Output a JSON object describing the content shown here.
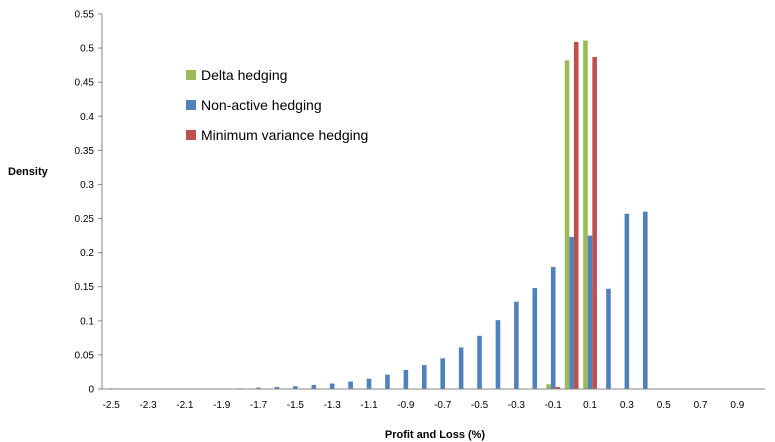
{
  "chart_data": {
    "type": "bar",
    "xlabel": "Profit and Loss (%)",
    "ylabel": "Density",
    "ylim": [
      0,
      0.55
    ],
    "yticks": [
      "0",
      "0.05",
      "0.1",
      "0.15",
      "0.2",
      "0.25",
      "0.3",
      "0.35",
      "0.4",
      "0.45",
      "0.5",
      "0.55"
    ],
    "xtick_labels": [
      "-2.5",
      "-2.3",
      "-2.1",
      "-1.9",
      "-1.7",
      "-1.5",
      "-1.3",
      "-1.1",
      "-0.9",
      "-0.7",
      "-0.5",
      "-0.3",
      "-0.1",
      "0.1",
      "0.3",
      "0.5",
      "0.7",
      "0.9"
    ],
    "legend_position": "top-left",
    "categories": [
      -2.5,
      -2.4,
      -2.3,
      -2.2,
      -2.1,
      -2.0,
      -1.9,
      -1.8,
      -1.7,
      -1.6,
      -1.5,
      -1.4,
      -1.3,
      -1.2,
      -1.1,
      -1.0,
      -0.9,
      -0.8,
      -0.7,
      -0.6,
      -0.5,
      -0.4,
      -0.3,
      -0.2,
      -0.1,
      0.0,
      0.1,
      0.2,
      0.3,
      0.4,
      0.5,
      0.6,
      0.7,
      0.8,
      0.9,
      1.0
    ],
    "series": [
      {
        "name": "Delta hedging",
        "color": "#9BBB59",
        "values": [
          0,
          0,
          0,
          0,
          0,
          0,
          0,
          0,
          0,
          0,
          0,
          0,
          0,
          0,
          0,
          0,
          0,
          0,
          0,
          0,
          0,
          0,
          0,
          0,
          0.007,
          0.482,
          0.511,
          0,
          0,
          0,
          0,
          0,
          0,
          0,
          0,
          0
        ]
      },
      {
        "name": "Non-active hedging",
        "color": "#4F81BD",
        "values": [
          0.001,
          0,
          0,
          0,
          0,
          0,
          0,
          0.001,
          0.002,
          0.003,
          0.004,
          0.006,
          0.008,
          0.011,
          0.015,
          0.021,
          0.028,
          0.035,
          0.045,
          0.061,
          0.078,
          0.101,
          0.128,
          0.148,
          0.179,
          0.223,
          0.225,
          0.147,
          0.257,
          0.26,
          0,
          0,
          0,
          0,
          0,
          0
        ]
      },
      {
        "name": "Minimum variance hedging",
        "color": "#C0504D",
        "values": [
          0,
          0,
          0,
          0,
          0,
          0,
          0,
          0,
          0,
          0,
          0,
          0,
          0,
          0,
          0,
          0,
          0,
          0,
          0,
          0,
          0,
          0,
          0,
          0,
          0.003,
          0.509,
          0.487,
          0,
          0,
          0,
          0,
          0,
          0,
          0,
          0,
          0
        ]
      }
    ]
  }
}
